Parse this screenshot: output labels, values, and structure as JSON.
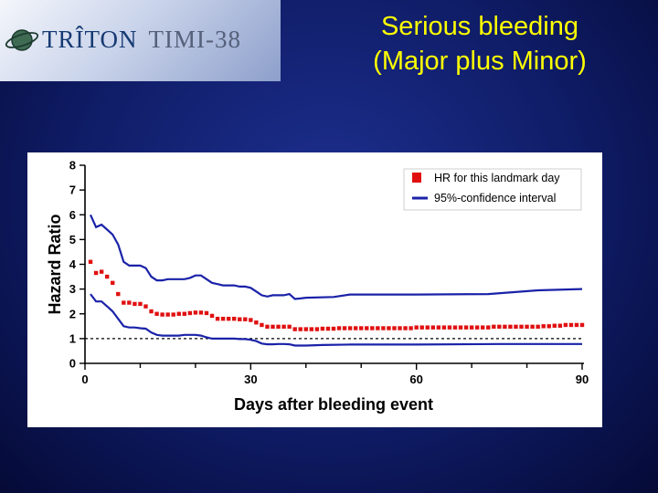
{
  "logo": {
    "icon": "globe-orbit-icon",
    "brand": "TRÎTON",
    "trial": "TIMI-38"
  },
  "slide": {
    "title_line1": "Serious bleeding",
    "title_line2": "(Major plus Minor)"
  },
  "colors": {
    "title": "#ffff00",
    "hr_marker": "#e01010",
    "ci_line": "#1a22a8",
    "reference_line": "#000000"
  },
  "chart_data": {
    "type": "scatter",
    "xlabel": "Days after bleeding event",
    "ylabel": "Hazard Ratio",
    "xlim": [
      0,
      90
    ],
    "ylim": [
      0,
      8
    ],
    "xticks": [
      0,
      30,
      60,
      90
    ],
    "yticks": [
      0,
      1,
      2,
      3,
      4,
      5,
      6,
      7,
      8
    ],
    "reference_y": 1,
    "legend_position": "top-right",
    "legend": [
      {
        "label": "HR for this landmark day",
        "kind": "marker"
      },
      {
        "label": "95%-confidence interval",
        "kind": "line"
      }
    ],
    "hr_points": [
      [
        1,
        4.1
      ],
      [
        2,
        3.65
      ],
      [
        3,
        3.7
      ],
      [
        4,
        3.5
      ],
      [
        5,
        3.25
      ],
      [
        6,
        2.8
      ],
      [
        7,
        2.45
      ],
      [
        8,
        2.45
      ],
      [
        9,
        2.4
      ],
      [
        10,
        2.4
      ],
      [
        11,
        2.3
      ],
      [
        12,
        2.1
      ],
      [
        13,
        2.0
      ],
      [
        14,
        1.97
      ],
      [
        15,
        1.97
      ],
      [
        16,
        1.97
      ],
      [
        17,
        2.0
      ],
      [
        18,
        2.0
      ],
      [
        19,
        2.03
      ],
      [
        20,
        2.05
      ],
      [
        21,
        2.05
      ],
      [
        22,
        2.03
      ],
      [
        23,
        1.92
      ],
      [
        24,
        1.8
      ],
      [
        25,
        1.8
      ],
      [
        26,
        1.8
      ],
      [
        27,
        1.8
      ],
      [
        28,
        1.78
      ],
      [
        29,
        1.78
      ],
      [
        30,
        1.75
      ],
      [
        31,
        1.65
      ],
      [
        32,
        1.55
      ],
      [
        33,
        1.48
      ],
      [
        34,
        1.48
      ],
      [
        35,
        1.48
      ],
      [
        36,
        1.48
      ],
      [
        37,
        1.48
      ],
      [
        38,
        1.38
      ],
      [
        39,
        1.38
      ],
      [
        40,
        1.38
      ],
      [
        41,
        1.38
      ],
      [
        42,
        1.38
      ],
      [
        43,
        1.4
      ],
      [
        44,
        1.4
      ],
      [
        45,
        1.4
      ],
      [
        46,
        1.42
      ],
      [
        47,
        1.42
      ],
      [
        48,
        1.42
      ],
      [
        49,
        1.42
      ],
      [
        50,
        1.42
      ],
      [
        51,
        1.42
      ],
      [
        52,
        1.42
      ],
      [
        53,
        1.42
      ],
      [
        54,
        1.42
      ],
      [
        55,
        1.42
      ],
      [
        56,
        1.42
      ],
      [
        57,
        1.42
      ],
      [
        58,
        1.42
      ],
      [
        59,
        1.42
      ],
      [
        60,
        1.45
      ],
      [
        61,
        1.45
      ],
      [
        62,
        1.45
      ],
      [
        63,
        1.45
      ],
      [
        64,
        1.45
      ],
      [
        65,
        1.45
      ],
      [
        66,
        1.45
      ],
      [
        67,
        1.45
      ],
      [
        68,
        1.45
      ],
      [
        69,
        1.45
      ],
      [
        70,
        1.45
      ],
      [
        71,
        1.45
      ],
      [
        72,
        1.45
      ],
      [
        73,
        1.45
      ],
      [
        74,
        1.48
      ],
      [
        75,
        1.48
      ],
      [
        76,
        1.48
      ],
      [
        77,
        1.48
      ],
      [
        78,
        1.48
      ],
      [
        79,
        1.48
      ],
      [
        80,
        1.48
      ],
      [
        81,
        1.48
      ],
      [
        82,
        1.48
      ],
      [
        83,
        1.5
      ],
      [
        84,
        1.5
      ],
      [
        85,
        1.52
      ],
      [
        86,
        1.52
      ],
      [
        87,
        1.55
      ],
      [
        88,
        1.55
      ],
      [
        89,
        1.55
      ],
      [
        90,
        1.55
      ]
    ],
    "ci_upper": [
      [
        1,
        6.0
      ],
      [
        2,
        5.5
      ],
      [
        3,
        5.6
      ],
      [
        4,
        5.4
      ],
      [
        5,
        5.2
      ],
      [
        6,
        4.8
      ],
      [
        7,
        4.1
      ],
      [
        8,
        3.95
      ],
      [
        9,
        3.95
      ],
      [
        10,
        3.95
      ],
      [
        11,
        3.85
      ],
      [
        12,
        3.5
      ],
      [
        13,
        3.35
      ],
      [
        14,
        3.35
      ],
      [
        15,
        3.4
      ],
      [
        16,
        3.4
      ],
      [
        17,
        3.4
      ],
      [
        18,
        3.4
      ],
      [
        19,
        3.45
      ],
      [
        20,
        3.55
      ],
      [
        21,
        3.55
      ],
      [
        22,
        3.4
      ],
      [
        23,
        3.25
      ],
      [
        24,
        3.2
      ],
      [
        25,
        3.15
      ],
      [
        26,
        3.15
      ],
      [
        27,
        3.15
      ],
      [
        28,
        3.1
      ],
      [
        29,
        3.1
      ],
      [
        30,
        3.05
      ],
      [
        31,
        2.9
      ],
      [
        32,
        2.75
      ],
      [
        33,
        2.7
      ],
      [
        34,
        2.75
      ],
      [
        35,
        2.75
      ],
      [
        36,
        2.75
      ],
      [
        37,
        2.8
      ],
      [
        38,
        2.6
      ],
      [
        39,
        2.62
      ],
      [
        40,
        2.65
      ],
      [
        45,
        2.68
      ],
      [
        48,
        2.78
      ],
      [
        60,
        2.78
      ],
      [
        73,
        2.8
      ],
      [
        82,
        2.95
      ],
      [
        90,
        3.0
      ]
    ],
    "ci_lower": [
      [
        1,
        2.8
      ],
      [
        2,
        2.5
      ],
      [
        3,
        2.5
      ],
      [
        4,
        2.3
      ],
      [
        5,
        2.1
      ],
      [
        6,
        1.8
      ],
      [
        7,
        1.5
      ],
      [
        8,
        1.45
      ],
      [
        9,
        1.45
      ],
      [
        10,
        1.42
      ],
      [
        11,
        1.4
      ],
      [
        12,
        1.25
      ],
      [
        13,
        1.15
      ],
      [
        14,
        1.12
      ],
      [
        15,
        1.12
      ],
      [
        16,
        1.12
      ],
      [
        17,
        1.12
      ],
      [
        18,
        1.15
      ],
      [
        19,
        1.15
      ],
      [
        20,
        1.15
      ],
      [
        21,
        1.12
      ],
      [
        22,
        1.05
      ],
      [
        23,
        1.0
      ],
      [
        24,
        1.0
      ],
      [
        25,
        1.0
      ],
      [
        26,
        1.0
      ],
      [
        27,
        1.0
      ],
      [
        28,
        0.98
      ],
      [
        29,
        0.98
      ],
      [
        30,
        0.95
      ],
      [
        31,
        0.9
      ],
      [
        32,
        0.8
      ],
      [
        33,
        0.77
      ],
      [
        34,
        0.77
      ],
      [
        35,
        0.78
      ],
      [
        36,
        0.78
      ],
      [
        37,
        0.77
      ],
      [
        38,
        0.72
      ],
      [
        39,
        0.72
      ],
      [
        40,
        0.72
      ],
      [
        43,
        0.74
      ],
      [
        48,
        0.76
      ],
      [
        60,
        0.76
      ],
      [
        75,
        0.78
      ],
      [
        90,
        0.78
      ]
    ]
  }
}
